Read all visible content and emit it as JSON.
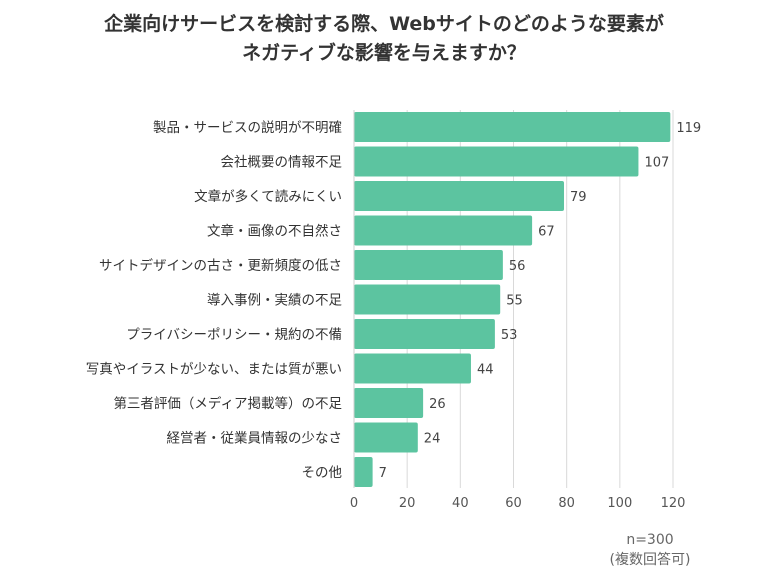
{
  "chart_data": {
    "type": "bar",
    "orientation": "horizontal",
    "title_lines": [
      "企業向けサービスを検討する際、Webサイトのどのような要素が",
      "ネガティブな影響を与えますか？"
    ],
    "categories": [
      "製品・サービスの説明が不明確",
      "会社概要の情報不足",
      "文章が多くて読みにくい",
      "文章・画像の不自然さ",
      "サイトデザインの古さ・更新頻度の低さ",
      "導入事例・実績の不足",
      "プライバシーポリシー・規約の不備",
      "写真やイラストが少ない、または質が悪い",
      "第三者評価（メディア掲載等）の不足",
      "経営者・従業員情報の少なさ",
      "その他"
    ],
    "values": [
      119,
      107,
      79,
      67,
      56,
      55,
      53,
      44,
      26,
      24,
      7
    ],
    "xlim": [
      0,
      120
    ],
    "xticks": [
      0,
      20,
      40,
      60,
      80,
      100,
      120
    ],
    "grid": true,
    "bar_color": "#5cc4a0",
    "notes": [
      "n=300",
      "(複数回答可)"
    ]
  }
}
